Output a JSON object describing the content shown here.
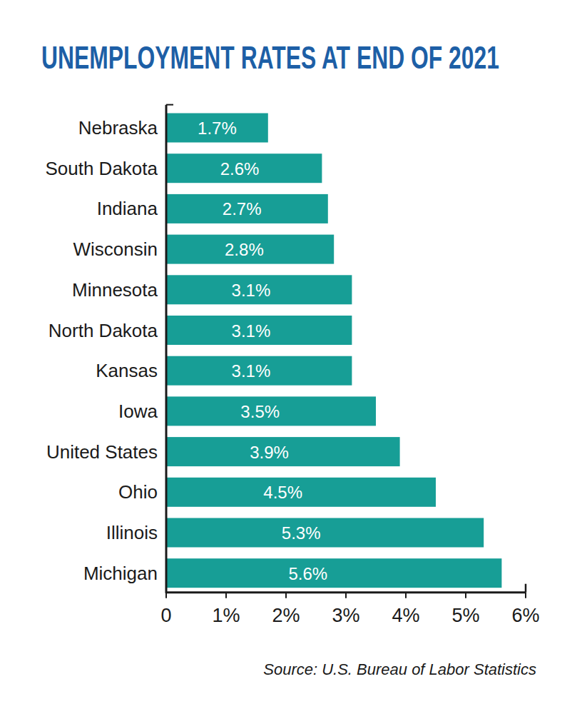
{
  "chart_data": {
    "type": "bar",
    "orientation": "horizontal",
    "title": "UNEMPLOYMENT RATES AT END OF 2021",
    "source": "Source: U.S. Bureau of Labor Statistics",
    "categories": [
      "Nebraska",
      "South Dakota",
      "Indiana",
      "Wisconsin",
      "Minnesota",
      "North Dakota",
      "Kansas",
      "Iowa",
      "United States",
      "Ohio",
      "Illinois",
      "Michigan"
    ],
    "values": [
      1.7,
      2.6,
      2.7,
      2.8,
      3.1,
      3.1,
      3.1,
      3.5,
      3.9,
      4.5,
      5.3,
      5.6
    ],
    "value_labels": [
      "1.7%",
      "2.6%",
      "2.7%",
      "2.8%",
      "3.1%",
      "3.1%",
      "3.1%",
      "3.5%",
      "3.9%",
      "4.5%",
      "5.3%",
      "5.6%"
    ],
    "color": "#179e96",
    "xlim": [
      0,
      6
    ],
    "xticks": [
      0,
      {
        "value": 1,
        "label": "1%"
      },
      {
        "value": 2,
        "label": "2%"
      },
      {
        "value": 3,
        "label": "3%"
      },
      {
        "value": 4,
        "label": "4%"
      },
      {
        "value": 5,
        "label": "5%"
      },
      {
        "value": 6,
        "label": "6%"
      }
    ],
    "grid": false,
    "data_labels": true
  }
}
